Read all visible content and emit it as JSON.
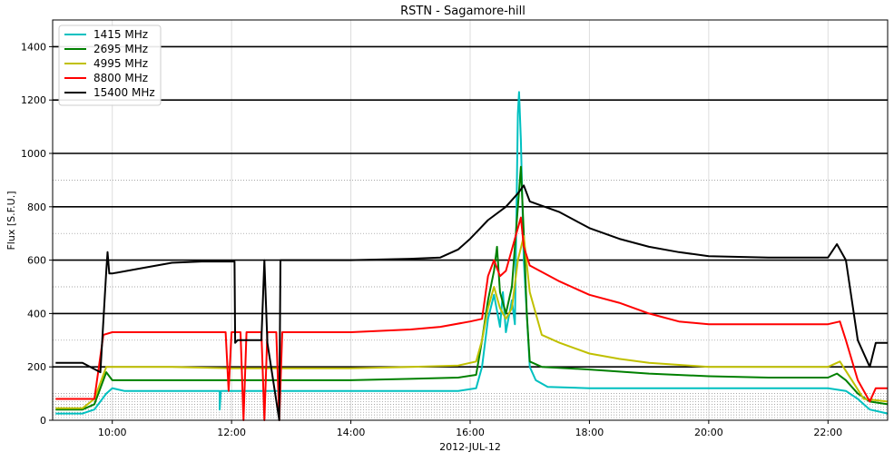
{
  "chart_data": {
    "type": "line",
    "title": "RSTN - Sagamore-hill",
    "xlabel": "2012-JUL-12",
    "ylabel": "Flux [S.F.U.]",
    "xlim": [
      9.0,
      23.0
    ],
    "ylim": [
      0,
      1500
    ],
    "x_unit": "hour of day (UT)",
    "xticks": [
      {
        "x": 10,
        "label": "10:00"
      },
      {
        "x": 12,
        "label": "12:00"
      },
      {
        "x": 14,
        "label": "14:00"
      },
      {
        "x": 16,
        "label": "16:00"
      },
      {
        "x": 18,
        "label": "18:00"
      },
      {
        "x": 20,
        "label": "20:00"
      },
      {
        "x": 22,
        "label": "22:00"
      }
    ],
    "yticks": [
      0,
      200,
      400,
      600,
      800,
      1000,
      1200,
      1400
    ],
    "grid": true,
    "major_hlines": [
      200,
      400,
      600,
      800,
      1000,
      1200,
      1400
    ],
    "minor_hlines": [
      10,
      20,
      30,
      40,
      50,
      60,
      70,
      80,
      90,
      100,
      300,
      500,
      700,
      900
    ],
    "legend_position": "top-left",
    "series": [
      {
        "name": "1415 MHz",
        "color": "#00c0c0",
        "points": [
          [
            9.05,
            25
          ],
          [
            9.5,
            25
          ],
          [
            9.7,
            40
          ],
          [
            9.9,
            100
          ],
          [
            10.0,
            120
          ],
          [
            10.2,
            110
          ],
          [
            11.0,
            110
          ],
          [
            11.8,
            110
          ],
          [
            11.8,
            40
          ],
          [
            11.82,
            110
          ],
          [
            12.0,
            110
          ],
          [
            13.0,
            110
          ],
          [
            14.0,
            110
          ],
          [
            15.0,
            110
          ],
          [
            15.8,
            110
          ],
          [
            16.1,
            120
          ],
          [
            16.2,
            200
          ],
          [
            16.3,
            380
          ],
          [
            16.4,
            470
          ],
          [
            16.5,
            350
          ],
          [
            16.55,
            480
          ],
          [
            16.6,
            330
          ],
          [
            16.7,
            450
          ],
          [
            16.75,
            360
          ],
          [
            16.8,
            1150
          ],
          [
            16.82,
            1230
          ],
          [
            16.85,
            1050
          ],
          [
            16.9,
            600
          ],
          [
            16.95,
            400
          ],
          [
            17.0,
            200
          ],
          [
            17.1,
            150
          ],
          [
            17.3,
            125
          ],
          [
            18.0,
            120
          ],
          [
            19.0,
            120
          ],
          [
            20.0,
            120
          ],
          [
            21.0,
            120
          ],
          [
            21.5,
            120
          ],
          [
            22.0,
            120
          ],
          [
            22.3,
            110
          ],
          [
            22.5,
            80
          ],
          [
            22.7,
            40
          ],
          [
            23.0,
            25
          ]
        ]
      },
      {
        "name": "2695 MHz",
        "color": "#008000",
        "points": [
          [
            9.05,
            40
          ],
          [
            9.5,
            40
          ],
          [
            9.7,
            60
          ],
          [
            9.9,
            180
          ],
          [
            10.0,
            150
          ],
          [
            10.5,
            150
          ],
          [
            11.0,
            150
          ],
          [
            12.0,
            150
          ],
          [
            13.0,
            150
          ],
          [
            14.0,
            150
          ],
          [
            15.0,
            155
          ],
          [
            15.8,
            160
          ],
          [
            16.1,
            170
          ],
          [
            16.2,
            300
          ],
          [
            16.3,
            450
          ],
          [
            16.4,
            560
          ],
          [
            16.45,
            650
          ],
          [
            16.5,
            480
          ],
          [
            16.6,
            400
          ],
          [
            16.7,
            500
          ],
          [
            16.8,
            800
          ],
          [
            16.85,
            950
          ],
          [
            16.9,
            700
          ],
          [
            16.95,
            400
          ],
          [
            17.0,
            220
          ],
          [
            17.2,
            200
          ],
          [
            18.0,
            190
          ],
          [
            19.0,
            175
          ],
          [
            20.0,
            165
          ],
          [
            21.0,
            160
          ],
          [
            22.0,
            160
          ],
          [
            22.15,
            175
          ],
          [
            22.3,
            150
          ],
          [
            22.5,
            100
          ],
          [
            22.7,
            70
          ],
          [
            23.0,
            60
          ]
        ]
      },
      {
        "name": "4995 MHz",
        "color": "#c0c000",
        "points": [
          [
            9.05,
            45
          ],
          [
            9.5,
            45
          ],
          [
            9.7,
            80
          ],
          [
            9.9,
            200
          ],
          [
            10.0,
            200
          ],
          [
            11.0,
            200
          ],
          [
            12.0,
            195
          ],
          [
            13.0,
            195
          ],
          [
            14.0,
            195
          ],
          [
            15.0,
            200
          ],
          [
            15.8,
            205
          ],
          [
            16.1,
            220
          ],
          [
            16.2,
            300
          ],
          [
            16.3,
            420
          ],
          [
            16.4,
            500
          ],
          [
            16.5,
            420
          ],
          [
            16.6,
            380
          ],
          [
            16.7,
            420
          ],
          [
            16.8,
            600
          ],
          [
            16.9,
            690
          ],
          [
            17.0,
            480
          ],
          [
            17.2,
            320
          ],
          [
            17.5,
            290
          ],
          [
            18.0,
            250
          ],
          [
            18.5,
            230
          ],
          [
            19.0,
            215
          ],
          [
            20.0,
            200
          ],
          [
            21.0,
            200
          ],
          [
            22.0,
            200
          ],
          [
            22.2,
            220
          ],
          [
            22.4,
            150
          ],
          [
            22.6,
            80
          ],
          [
            23.0,
            70
          ]
        ]
      },
      {
        "name": "8800 MHz",
        "color": "#ff0000",
        "points": [
          [
            9.05,
            80
          ],
          [
            9.5,
            80
          ],
          [
            9.7,
            80
          ],
          [
            9.85,
            320
          ],
          [
            10.0,
            330
          ],
          [
            11.0,
            330
          ],
          [
            11.9,
            330
          ],
          [
            11.95,
            110
          ],
          [
            12.0,
            330
          ],
          [
            12.15,
            330
          ],
          [
            12.2,
            0
          ],
          [
            12.25,
            330
          ],
          [
            12.5,
            330
          ],
          [
            12.55,
            0
          ],
          [
            12.6,
            330
          ],
          [
            12.75,
            330
          ],
          [
            12.8,
            0
          ],
          [
            12.85,
            330
          ],
          [
            13.0,
            330
          ],
          [
            14.0,
            330
          ],
          [
            15.0,
            340
          ],
          [
            15.5,
            350
          ],
          [
            16.0,
            370
          ],
          [
            16.2,
            380
          ],
          [
            16.3,
            540
          ],
          [
            16.4,
            600
          ],
          [
            16.5,
            540
          ],
          [
            16.6,
            560
          ],
          [
            16.8,
            720
          ],
          [
            16.85,
            760
          ],
          [
            16.9,
            650
          ],
          [
            17.0,
            580
          ],
          [
            17.5,
            520
          ],
          [
            18.0,
            470
          ],
          [
            18.5,
            440
          ],
          [
            19.0,
            400
          ],
          [
            19.5,
            370
          ],
          [
            20.0,
            360
          ],
          [
            21.0,
            360
          ],
          [
            21.5,
            360
          ],
          [
            22.0,
            360
          ],
          [
            22.2,
            370
          ],
          [
            22.3,
            300
          ],
          [
            22.5,
            150
          ],
          [
            22.7,
            70
          ],
          [
            22.8,
            120
          ],
          [
            23.0,
            120
          ]
        ]
      },
      {
        "name": "15400 MHz",
        "color": "#000000",
        "points": [
          [
            9.05,
            215
          ],
          [
            9.5,
            215
          ],
          [
            9.8,
            180
          ],
          [
            9.9,
            560
          ],
          [
            9.92,
            630
          ],
          [
            9.95,
            550
          ],
          [
            10.0,
            550
          ],
          [
            10.5,
            570
          ],
          [
            11.0,
            590
          ],
          [
            11.5,
            595
          ],
          [
            12.0,
            595
          ],
          [
            12.05,
            595
          ],
          [
            12.06,
            290
          ],
          [
            12.1,
            300
          ],
          [
            12.5,
            300
          ],
          [
            12.55,
            600
          ],
          [
            12.6,
            290
          ],
          [
            12.8,
            0
          ],
          [
            12.82,
            600
          ],
          [
            13.0,
            600
          ],
          [
            14.0,
            600
          ],
          [
            15.0,
            605
          ],
          [
            15.5,
            610
          ],
          [
            15.8,
            640
          ],
          [
            16.0,
            680
          ],
          [
            16.3,
            750
          ],
          [
            16.6,
            800
          ],
          [
            16.8,
            850
          ],
          [
            16.9,
            880
          ],
          [
            17.0,
            820
          ],
          [
            17.5,
            780
          ],
          [
            18.0,
            720
          ],
          [
            18.5,
            680
          ],
          [
            19.0,
            650
          ],
          [
            19.5,
            630
          ],
          [
            20.0,
            615
          ],
          [
            21.0,
            610
          ],
          [
            21.5,
            610
          ],
          [
            22.0,
            610
          ],
          [
            22.15,
            660
          ],
          [
            22.3,
            600
          ],
          [
            22.5,
            300
          ],
          [
            22.7,
            200
          ],
          [
            22.8,
            290
          ],
          [
            23.0,
            290
          ]
        ]
      }
    ]
  }
}
